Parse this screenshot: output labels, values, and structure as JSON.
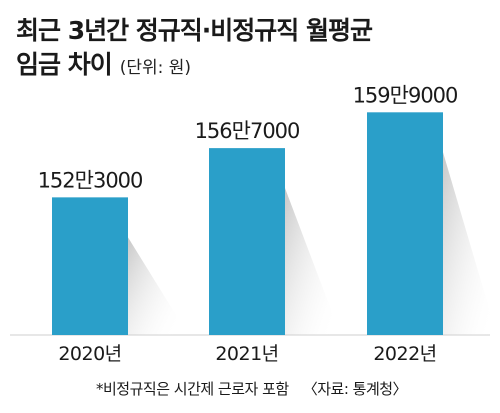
{
  "chart_data": {
    "type": "bar",
    "title_line1": "최근 3년간 정규직·비정규직 월평균",
    "title_line2": "임금 차이",
    "unit_label": "(단위: 원)",
    "categories": [
      "2020년",
      "2021년",
      "2022년"
    ],
    "values": [
      1523000,
      1567000,
      1599000
    ],
    "value_labels": [
      "152만3000",
      "156만7000",
      "159만9000"
    ],
    "bar_color": "#2a9fc9",
    "footnote": "*비정규직은 시간제 근로자 포함",
    "source": "〈자료: 통계청〉"
  }
}
